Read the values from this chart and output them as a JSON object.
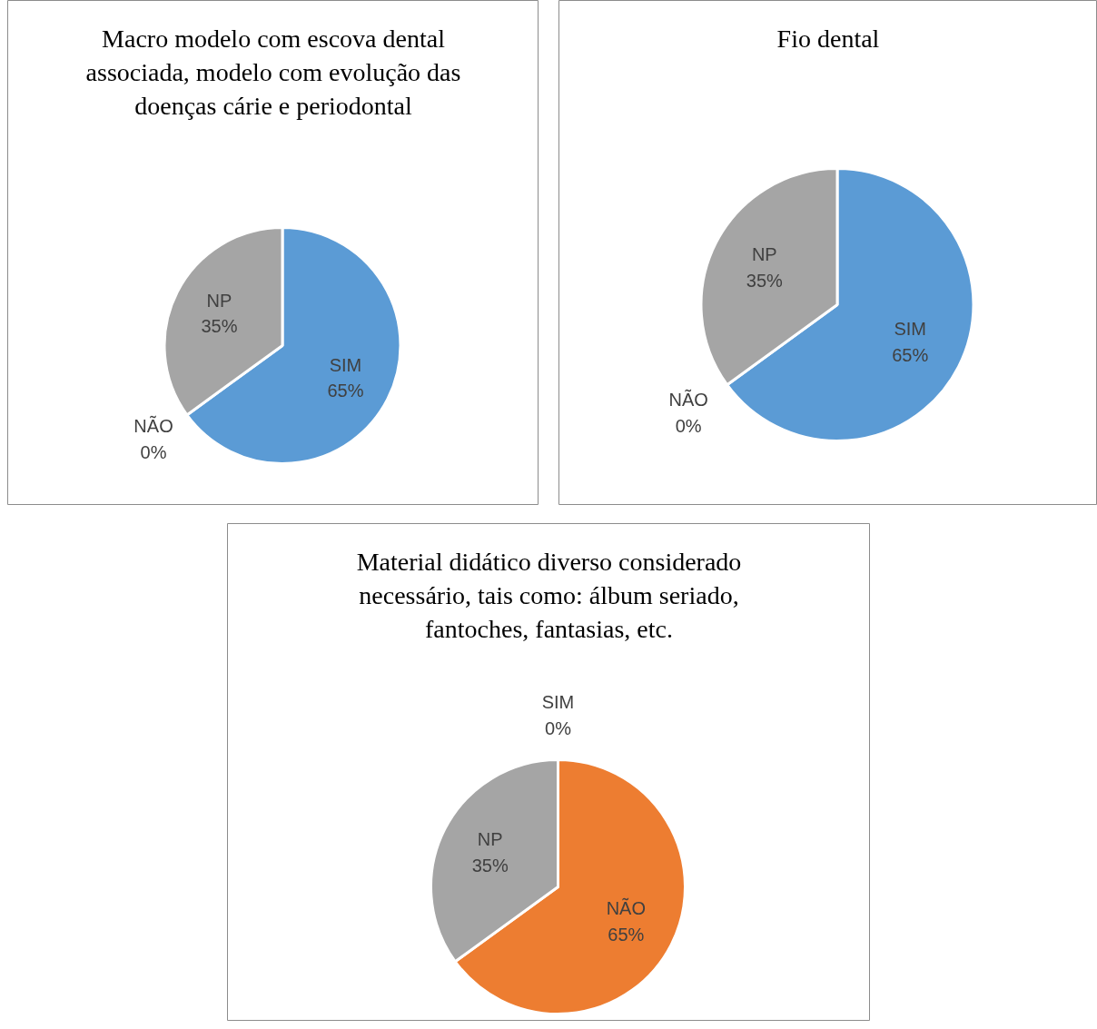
{
  "chart_data": [
    {
      "type": "pie",
      "title": "Macro modelo com escova dental associada, modelo com evolução das doenças cárie e periodontal",
      "categories": [
        "SIM",
        "NÃO",
        "NP"
      ],
      "values": [
        65,
        0,
        35
      ],
      "colors": [
        "#5b9bd5",
        "#ed7d31",
        "#a5a5a5"
      ],
      "value_labels": [
        "65%",
        "0%",
        "35%"
      ],
      "legend": false
    },
    {
      "type": "pie",
      "title": "Fio dental",
      "categories": [
        "SIM",
        "NÃO",
        "NP"
      ],
      "values": [
        65,
        0,
        35
      ],
      "colors": [
        "#5b9bd5",
        "#ed7d31",
        "#a5a5a5"
      ],
      "value_labels": [
        "65%",
        "0%",
        "35%"
      ],
      "legend": false
    },
    {
      "type": "pie",
      "title": "Material didático diverso considerado necessário, tais como: álbum seriado, fantoches, fantasias, etc.",
      "categories": [
        "SIM",
        "NÃO",
        "NP"
      ],
      "values": [
        0,
        65,
        35
      ],
      "colors": [
        "#5b9bd5",
        "#ed7d31",
        "#a5a5a5"
      ],
      "value_labels": [
        "0%",
        "65%",
        "35%"
      ],
      "legend": false
    }
  ]
}
